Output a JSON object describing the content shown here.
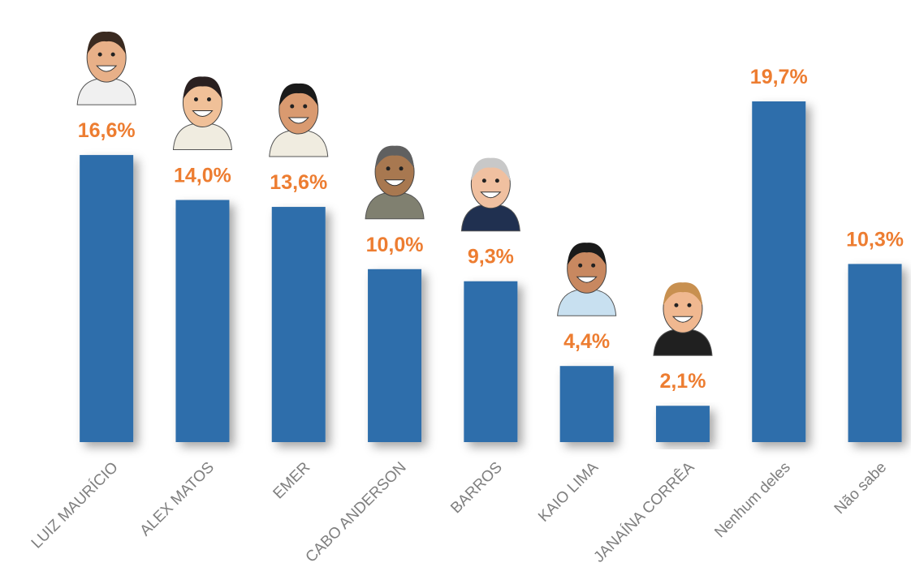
{
  "chart_data": {
    "type": "bar",
    "categories": [
      "LUIZ MAURÍCIO",
      "ALEX MATOS",
      "EMER",
      "CABO ANDERSON",
      "BARROS",
      "KAIO LIMA",
      "JANAÍNA CORRÊA",
      "Nenhum deles",
      "Não sabe"
    ],
    "values": [
      16.6,
      14.0,
      13.6,
      10.0,
      9.3,
      4.4,
      2.1,
      19.7,
      10.3
    ],
    "value_labels": [
      "16,6%",
      "14,0%",
      "13,6%",
      "10,0%",
      "9,3%",
      "4,4%",
      "2,1%",
      "19,7%",
      "10,3%"
    ],
    "color": "#2e6eab"
  }
}
